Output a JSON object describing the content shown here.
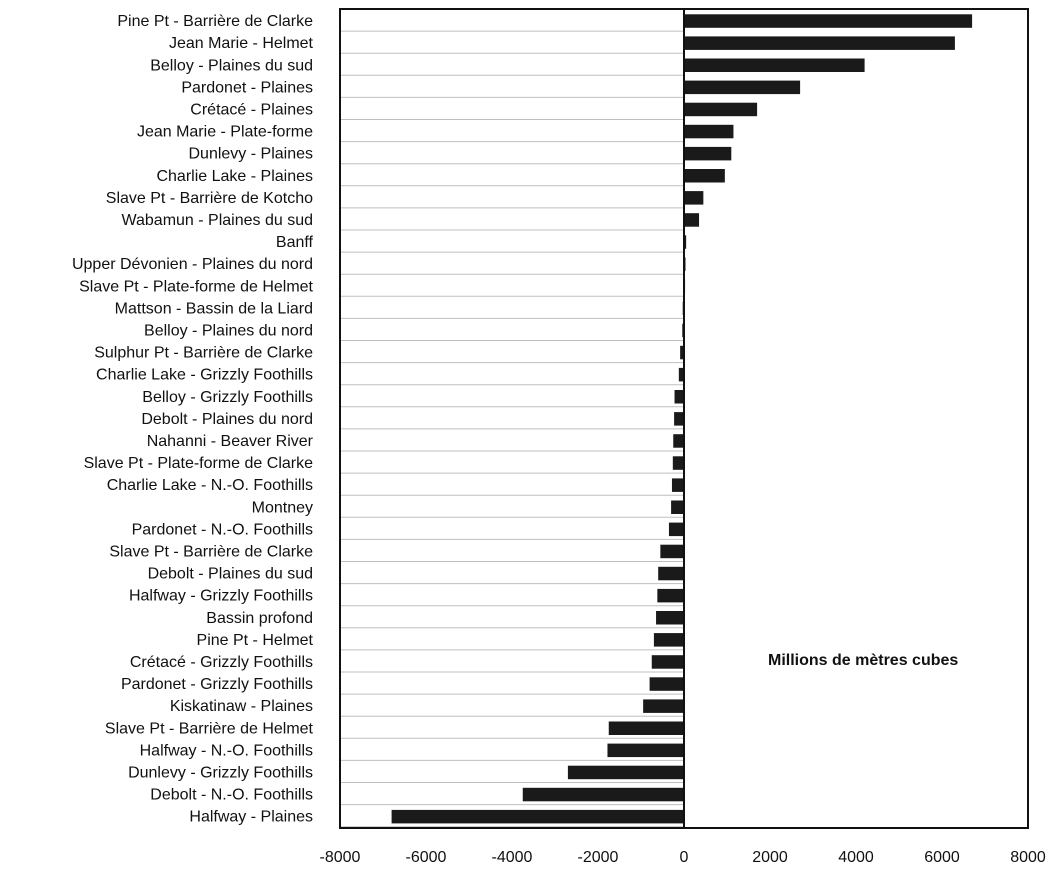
{
  "chart_data": {
    "type": "bar",
    "orientation": "horizontal",
    "categories": [
      "Pine Pt - Barrière de Clarke",
      "Jean Marie - Helmet",
      "Belloy - Plaines du sud",
      "Pardonet - Plaines",
      "Crétacé - Plaines",
      "Jean Marie - Plate-forme",
      "Dunlevy - Plaines",
      "Charlie Lake - Plaines",
      "Slave Pt - Barrière de Kotcho",
      "Wabamun - Plaines du sud",
      "Banff",
      "Upper Dévonien - Plaines du nord",
      "Slave Pt - Plate-forme de Helmet",
      "Mattson - Bassin de la Liard",
      "Belloy - Plaines du nord",
      "Sulphur Pt - Barrière de Clarke",
      "Charlie Lake - Grizzly Foothills",
      "Belloy - Grizzly Foothills",
      "Debolt - Plaines du nord",
      "Nahanni - Beaver River",
      "Slave Pt - Plate-forme de Clarke",
      "Charlie Lake - N.-O. Foothills",
      "Montney",
      "Pardonet - N.-O. Foothills",
      "Slave Pt - Barrière de Clarke",
      "Debolt - Plaines du sud",
      "Halfway - Grizzly Foothills",
      "Bassin profond",
      "Pine Pt - Helmet",
      "Crétacé - Grizzly Foothills",
      "Pardonet - Grizzly Foothills",
      "Kiskatinaw - Plaines",
      "Slave Pt - Barrière de Helmet",
      "Halfway - N.-O. Foothills",
      "Dunlevy - Grizzly Foothills",
      "Debolt - N.-O. Foothills",
      "Halfway - Plaines"
    ],
    "values": [
      6700,
      6300,
      4200,
      2700,
      1700,
      1150,
      1100,
      950,
      450,
      350,
      50,
      10,
      -10,
      -30,
      -40,
      -90,
      -120,
      -220,
      -230,
      -250,
      -260,
      -280,
      -300,
      -350,
      -550,
      -600,
      -620,
      -650,
      -700,
      -750,
      -800,
      -950,
      -1750,
      -1780,
      -2700,
      -3750,
      -6800
    ],
    "xlim": [
      -8000,
      8000
    ],
    "xticks": [
      "-8000",
      "-6000",
      "-4000",
      "-2000",
      "0",
      "2000",
      "4000",
      "6000",
      "8000"
    ],
    "xtick_values": [
      -8000,
      -6000,
      -4000,
      -2000,
      0,
      2000,
      4000,
      6000,
      8000
    ],
    "unit_label": "Millions de mètres cubes",
    "legend": "none",
    "colors": {
      "bar": "#1a1a1a",
      "gridline": "#bfbfbf",
      "axis": "#111111"
    }
  }
}
